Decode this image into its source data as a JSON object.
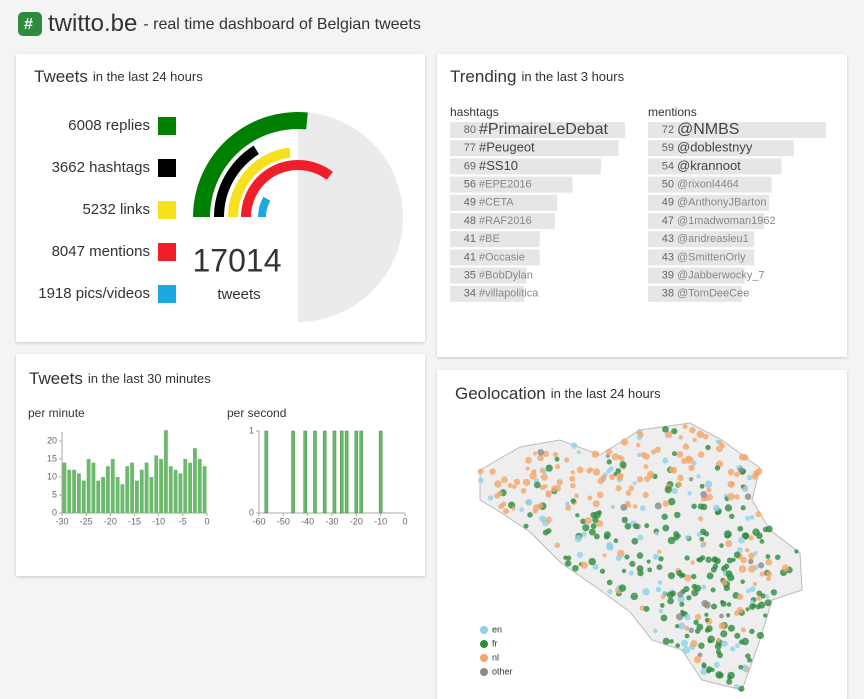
{
  "header": {
    "title": "twitto.be",
    "subtitle": "- real time dashboard of Belgian tweets"
  },
  "chart_data": [
    {
      "type": "radial-bar",
      "title": "Tweets",
      "subtitle": "in the last 24 hours",
      "values": [
        6008,
        3662,
        5232,
        8047,
        1918
      ],
      "value_labels": [
        "6008 replies",
        "3662 hashtags",
        "5232 links",
        "8047 mentions",
        "1918 pics/videos"
      ],
      "colors": [
        "#008000",
        "#000000",
        "#f5e11e",
        "#f01e28",
        "#1ea8e0"
      ],
      "total": 17014,
      "total_label": "tweets"
    },
    {
      "type": "hbar",
      "title": "Trending",
      "subtitle": "in the last 3 hours",
      "label": "hashtags",
      "categories": [
        "#PrimaireLeDebat",
        "#Peugeot",
        "#SS10",
        "#EPE2016",
        "#CETA",
        "#RAF2016",
        "#BE",
        "#Occasie",
        "#BobDylan",
        "#villapolitica"
      ],
      "values": [
        80,
        77,
        69,
        56,
        49,
        48,
        41,
        41,
        35,
        34
      ],
      "color": "#e6e6e6"
    },
    {
      "type": "hbar",
      "label": "mentions",
      "categories": [
        "@NMBS",
        "@doblestnyy",
        "@krannoot",
        "@rixonl4464",
        "@AnthonyJBarton",
        "@1madwoman1962",
        "@andreasleu1",
        "@SmittenOrly",
        "@Jabberwocky_7",
        "@TomDeeCee"
      ],
      "values": [
        72,
        59,
        54,
        50,
        49,
        47,
        43,
        43,
        39,
        38
      ],
      "color": "#e6e6e6"
    },
    {
      "type": "bar",
      "title": "Tweets",
      "subtitle": "in the last 30 minutes",
      "label": "per minute",
      "x": [
        -30,
        -29,
        -28,
        -27,
        -26,
        -25,
        -24,
        -23,
        -22,
        -21,
        -20,
        -19,
        -18,
        -17,
        -16,
        -15,
        -14,
        -13,
        -12,
        -11,
        -10,
        -9,
        -8,
        -7,
        -6,
        -5,
        -4,
        -3,
        -2,
        -1
      ],
      "values": [
        14,
        12,
        12,
        11,
        9,
        15,
        14,
        9,
        10,
        13,
        15,
        10,
        8,
        13,
        14,
        9,
        12,
        14,
        10,
        16,
        15,
        23,
        13,
        12,
        11,
        15,
        14,
        18,
        15,
        13
      ],
      "xlim": [
        -30,
        0
      ],
      "ylim": [
        0,
        22.5
      ],
      "xticks": [
        -30,
        -25,
        -20,
        -15,
        -10,
        -5,
        0
      ],
      "yticks": [
        0,
        5,
        10,
        15,
        20
      ],
      "color": "#6cb86c"
    },
    {
      "type": "spike",
      "label": "per second",
      "x": [
        -57,
        -46,
        -41,
        -37,
        -33,
        -29,
        -26,
        -24,
        -20,
        -18,
        -10
      ],
      "values": [
        1,
        1,
        1,
        1,
        1,
        1,
        1,
        1,
        1,
        1,
        1
      ],
      "xlim": [
        -60,
        0
      ],
      "ylim": [
        0,
        1
      ],
      "xticks": [
        -60,
        -50,
        -40,
        -30,
        -20,
        -10,
        0
      ],
      "yticks": [
        0,
        1
      ],
      "color": "#6cb86c"
    },
    {
      "type": "map",
      "title": "Geolocation",
      "subtitle": "in the last 24 hours",
      "series": [
        {
          "name": "en",
          "color": "#8ecfe8"
        },
        {
          "name": "fr",
          "color": "#2e8b3e"
        },
        {
          "name": "nl",
          "color": "#f2a66a"
        },
        {
          "name": "other",
          "color": "#8a8a8a"
        }
      ]
    }
  ]
}
